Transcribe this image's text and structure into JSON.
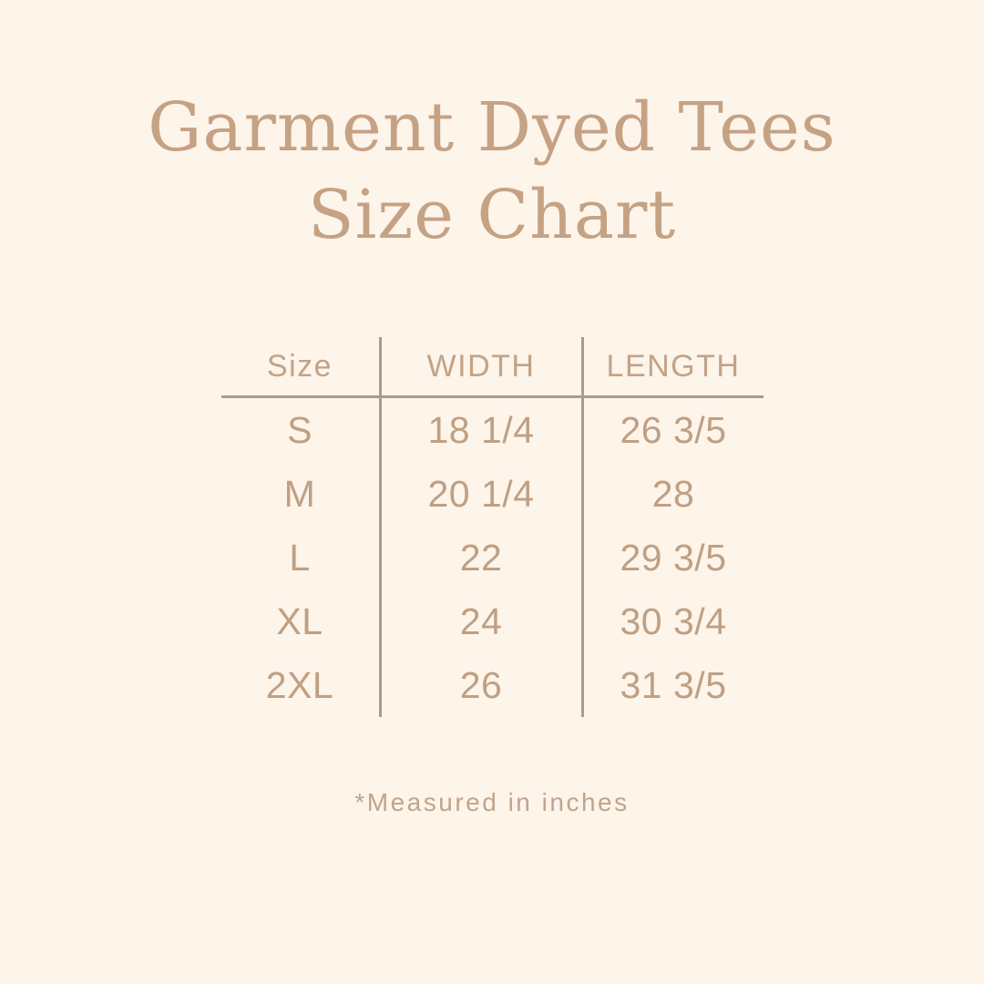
{
  "page": {
    "background_color": "#fdf4ea",
    "title_color": "#c5a283",
    "text_color": "#bfa083",
    "line_color": "#ab9c8e"
  },
  "title": {
    "line1": "Garment Dyed Tees",
    "line2": "Size Chart"
  },
  "table": {
    "columns": [
      "Size",
      "WIDTH",
      "LENGTH"
    ],
    "rows": [
      {
        "size": "S",
        "width": "18 1/4",
        "length": "26 3/5"
      },
      {
        "size": "M",
        "width": "20 1/4",
        "length": "28"
      },
      {
        "size": "L",
        "width": "22",
        "length": "29 3/5"
      },
      {
        "size": "XL",
        "width": "24",
        "length": "30 3/4"
      },
      {
        "size": "2XL",
        "width": "26",
        "length": "31 3/5"
      }
    ]
  },
  "footnote": "*Measured in inches"
}
